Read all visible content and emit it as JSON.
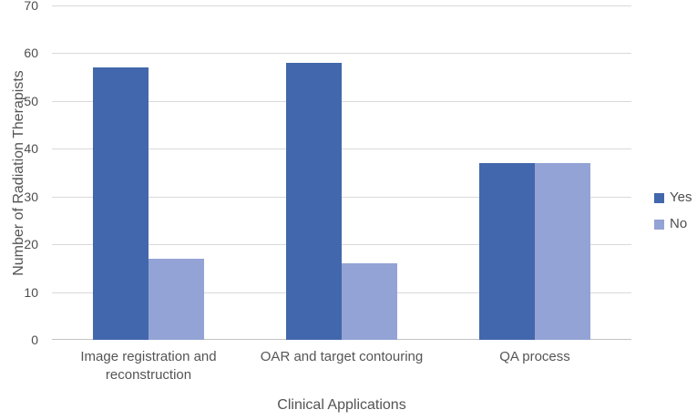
{
  "chart_data": {
    "type": "bar",
    "title": "",
    "categories": [
      "Image registration and reconstruction",
      "OAR and target contouring",
      "QA process"
    ],
    "series": [
      {
        "name": "Yes",
        "color": "#4267ac",
        "values": [
          57,
          58,
          37
        ]
      },
      {
        "name": "No",
        "color": "#94a3d5",
        "values": [
          17,
          16,
          37
        ]
      }
    ],
    "xlabel": "Clinical Applications",
    "ylabel": "Number of Radiation Therapists",
    "ylim": [
      0,
      70
    ],
    "ytick_step": 10,
    "yticks": [
      0,
      10,
      20,
      30,
      40,
      50,
      60,
      70
    ],
    "grid": "horizontal",
    "legend_position": "right",
    "colors": {
      "gridline": "#d9d9d9",
      "axis_line": "#c2c2c2",
      "text": "#4d4d4d",
      "background": "#ffffff"
    }
  }
}
